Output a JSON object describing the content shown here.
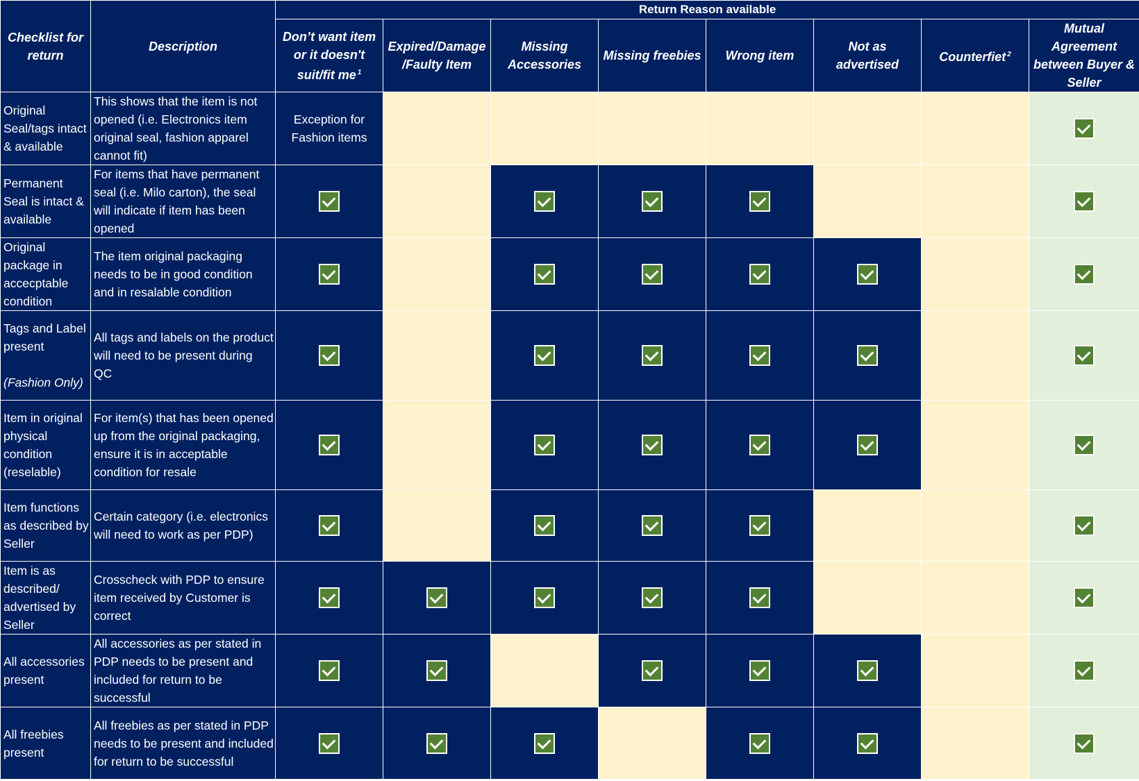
{
  "header": {
    "group_title": "Return Reason available",
    "checklist_col": "Checklist for return",
    "description_col": "Description",
    "reasons": [
      {
        "label": "Don’t want item or it doesn't suit/fit me",
        "note": "1"
      },
      {
        "label": "Expired/Damage /Faulty Item",
        "note": ""
      },
      {
        "label": "Missing Accessories",
        "note": ""
      },
      {
        "label": "Missing freebies",
        "note": ""
      },
      {
        "label": "Wrong item",
        "note": ""
      },
      {
        "label": "Not as advertised",
        "note": ""
      },
      {
        "label": "Counterfiet",
        "note": "2"
      },
      {
        "label": "Mutual Agreement between Buyer & Seller",
        "note": ""
      }
    ]
  },
  "rows": [
    {
      "item": "Original Seal/tags intact & available",
      "item_note": "",
      "description": "This shows that the item is not opened (i.e. Electronics item original seal, fashion apparel cannot fit)",
      "cells": [
        "Exception for Fashion items",
        "-",
        "-",
        "-",
        "-",
        "-",
        "-",
        "check"
      ]
    },
    {
      "item": "Permanent Seal is intact & available",
      "item_note": "",
      "description": "For items that have permanent seal (i.e. Milo carton), the seal will indicate if item has been opened",
      "cells": [
        "check",
        "-",
        "check",
        "check",
        "check",
        "-",
        "-",
        "check"
      ]
    },
    {
      "item": "Original package in accecptable condition",
      "item_note": "",
      "description": "The item original packaging needs to be in good condition and in resalable condition",
      "cells": [
        "check",
        "-",
        "check",
        "check",
        "check",
        "check",
        "-",
        "check"
      ]
    },
    {
      "item": "Tags and Label present",
      "item_note": "(Fashion Only)",
      "description": "All tags and labels on the product will need to be present during QC",
      "cells": [
        "check",
        "-",
        "check",
        "check",
        "check",
        "check",
        "-",
        "check"
      ]
    },
    {
      "item": "Item in original physical condition (reselable)",
      "item_note": "",
      "description": "For item(s) that has been opened up from the original packaging, ensure it is in acceptable condition for resale",
      "cells": [
        "check",
        "-",
        "check",
        "check",
        "check",
        "check",
        "-",
        "check"
      ]
    },
    {
      "item": "Item functions as described by Seller",
      "item_note": "",
      "description": "Certain category (i.e. electronics will need to work as per PDP)",
      "cells": [
        "check",
        "-",
        "check",
        "check",
        "check",
        "-",
        "-",
        "check"
      ]
    },
    {
      "item": "Item is as described/ advertised by Seller",
      "item_note": "",
      "description": "Crosscheck with PDP to ensure item received by Customer is correct",
      "cells": [
        "check",
        "check",
        "check",
        "check",
        "check",
        "-",
        "-",
        "check"
      ]
    },
    {
      "item": "All accessories present",
      "item_note": "",
      "description": "All accessories as per stated in PDP needs to be present and included for return to be successful",
      "cells": [
        "check",
        "check",
        "-",
        "check",
        "check",
        "check",
        "-",
        "check"
      ]
    },
    {
      "item": "All freebies present",
      "item_note": "",
      "description": "All freebies as per stated in PDP needs to be present and included for return to be successful",
      "cells": [
        "check",
        "check",
        "check",
        "-",
        "check",
        "check",
        "-",
        "check"
      ]
    }
  ],
  "colors": {
    "navy": "#002060",
    "cream": "#fff2cc",
    "mint": "#e2efda",
    "check_green": "#548235"
  }
}
